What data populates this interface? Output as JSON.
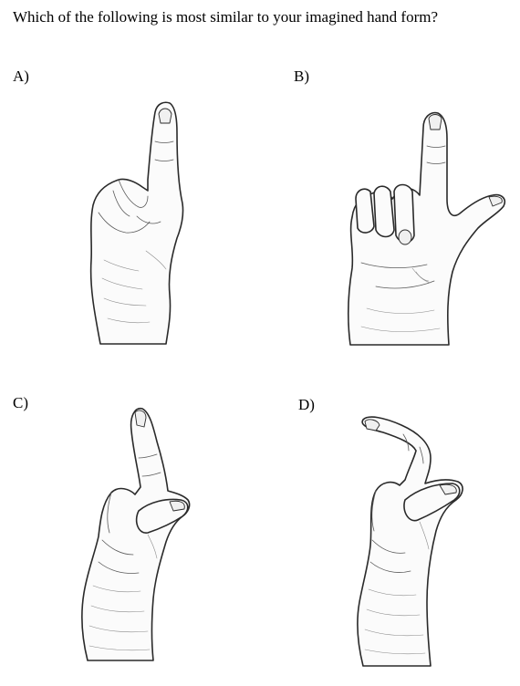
{
  "question": {
    "text": "Which of the following is most similar to your imagined hand form?"
  },
  "options": [
    {
      "label": "A)",
      "description": "index finger extended, other fingers curled, thumb tucked"
    },
    {
      "label": "B)",
      "description": "index finger and thumb extended (L shape), other fingers curled"
    },
    {
      "label": "C)",
      "description": "index finger extended, thumb pressed against it"
    },
    {
      "label": "D)",
      "description": "index finger bent, thumb touching it"
    }
  ],
  "colors": {
    "ink": "#000000",
    "sketch": "#2a2a2a",
    "background": "#ffffff"
  }
}
